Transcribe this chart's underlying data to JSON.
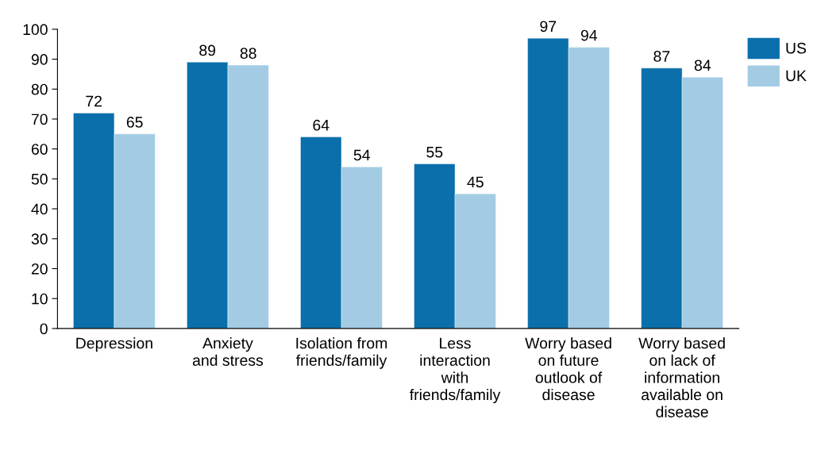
{
  "chart_data": {
    "type": "bar",
    "categories": [
      "Depression",
      "Anxiety\nand stress",
      "Isolation from\nfriends/family",
      "Less\ninteraction\nwith\nfriends/family",
      "Worry based\non future\noutlook of\ndisease",
      "Worry based\non lack of\ninformation\navailable on\ndisease"
    ],
    "series": [
      {
        "name": "US",
        "color": "#0a6faa",
        "values": [
          72,
          89,
          64,
          55,
          97,
          87
        ]
      },
      {
        "name": "UK",
        "color": "#a3cce4",
        "values": [
          65,
          88,
          54,
          45,
          94,
          84
        ]
      }
    ],
    "ylim": [
      0,
      100
    ],
    "yticks": [
      0,
      10,
      20,
      30,
      40,
      50,
      60,
      70,
      80,
      90,
      100
    ],
    "data_labels": true,
    "grid": false,
    "legend": "top right"
  }
}
